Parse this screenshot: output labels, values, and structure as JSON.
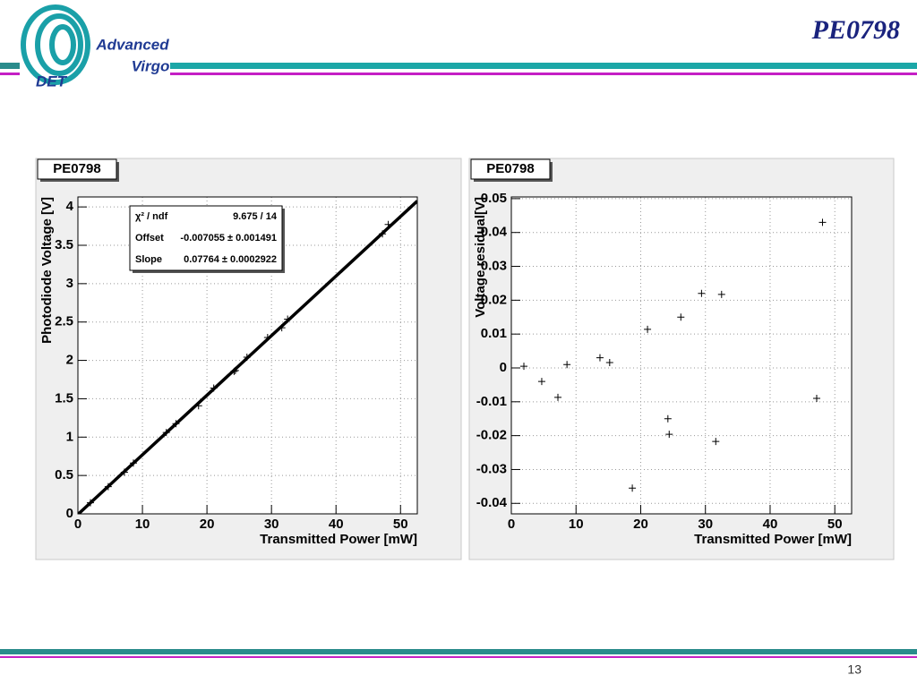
{
  "header": {
    "title": "PE0798",
    "logo": {
      "line1": "Advanced",
      "line2": "Virgo",
      "line3": "DET"
    }
  },
  "chart_data": [
    {
      "type": "scatter",
      "title": "PE0798",
      "x_label": "Transmitted Power [mW]",
      "y_label": "Photodiode Voltage [V]",
      "x": [
        1.94,
        4.7,
        7.2,
        8.6,
        13.7,
        15.2,
        18.7,
        21.05,
        24.2,
        24.4,
        26.2,
        29.4,
        31.6,
        32.5,
        47.2,
        48.1
      ],
      "values": [
        0.144,
        0.354,
        0.543,
        0.662,
        1.06,
        1.175,
        1.409,
        1.639,
        1.857,
        1.868,
        2.042,
        2.298,
        2.425,
        2.538,
        3.649,
        3.771
      ],
      "color": "#000000",
      "fit": {
        "offset": -0.007055,
        "slope": 0.07764
      },
      "stats": [
        {
          "label": "χ² / ndf",
          "value": "9.675 / 14"
        },
        {
          "label": "Offset",
          "value": "-0.007055 ± 0.001491"
        },
        {
          "label": "Slope",
          "value": "0.07764 ± 0.0002922"
        }
      ],
      "xlim": [
        0,
        52.6
      ],
      "ylim": [
        0,
        4.13
      ],
      "xticks": [
        0,
        10,
        20,
        30,
        40,
        50
      ],
      "yticks": [
        0,
        0.5,
        1,
        1.5,
        2,
        2.5,
        3,
        3.5,
        4
      ],
      "grid": true
    },
    {
      "type": "scatter",
      "title": "PE0798",
      "x_label": "Transmitted Power [mW]",
      "y_label": "Voltage residual[V]",
      "x": [
        1.94,
        4.7,
        7.2,
        8.6,
        13.7,
        15.2,
        18.7,
        21.05,
        24.2,
        24.4,
        26.2,
        29.4,
        31.6,
        32.5,
        47.2,
        48.1
      ],
      "values": [
        0.0005,
        -0.004,
        -0.0087,
        0.001,
        0.003,
        0.0016,
        -0.0355,
        0.0114,
        -0.015,
        -0.0196,
        0.015,
        0.022,
        -0.0217,
        0.0217,
        -0.009,
        0.043
      ],
      "color": "#000000",
      "xlim": [
        0,
        52.6
      ],
      "ylim": [
        -0.0431,
        0.0505
      ],
      "xticks": [
        0,
        10,
        20,
        30,
        40,
        50
      ],
      "yticks": [
        -0.04,
        -0.03,
        -0.02,
        -0.01,
        0,
        0.01,
        0.02,
        0.03,
        0.04,
        0.05
      ],
      "grid": true
    }
  ],
  "footer": {
    "page_number": "13"
  }
}
